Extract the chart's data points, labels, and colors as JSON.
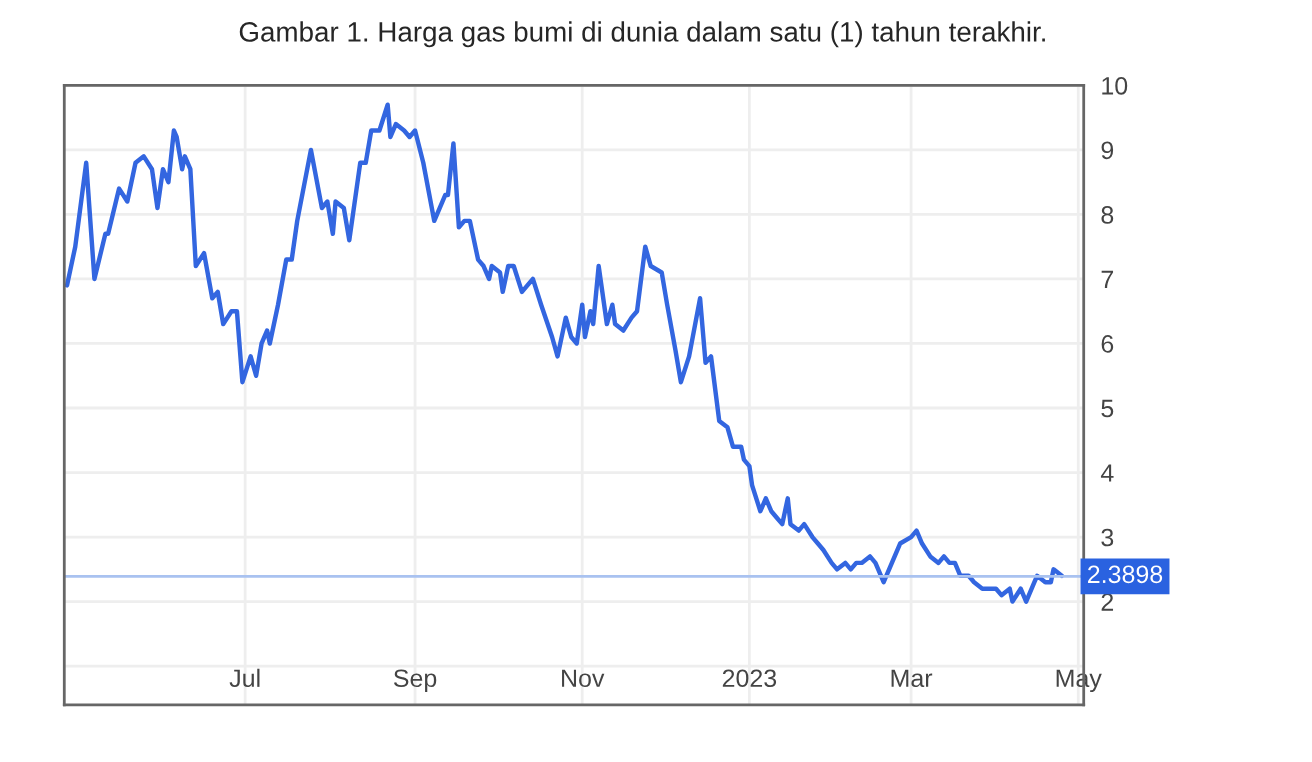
{
  "chart_data": {
    "type": "line",
    "title": "Gambar 1. Harga gas bumi di dunia dalam satu (1) tahun terakhir.",
    "x": [
      "2022-04-27",
      "2022-04-30",
      "2022-05-04",
      "2022-05-07",
      "2022-05-11",
      "2022-05-12",
      "2022-05-16",
      "2022-05-19",
      "2022-05-22",
      "2022-05-25",
      "2022-05-28",
      "2022-05-30",
      "2022-06-01",
      "2022-06-03",
      "2022-06-05",
      "2022-06-06",
      "2022-06-08",
      "2022-06-09",
      "2022-06-11",
      "2022-06-13",
      "2022-06-16",
      "2022-06-19",
      "2022-06-21",
      "2022-06-23",
      "2022-06-26",
      "2022-06-28",
      "2022-06-30",
      "2022-07-03",
      "2022-07-05",
      "2022-07-07",
      "2022-07-09",
      "2022-07-10",
      "2022-07-13",
      "2022-07-16",
      "2022-07-18",
      "2022-07-20",
      "2022-07-25",
      "2022-07-29",
      "2022-07-31",
      "2022-08-02",
      "2022-08-03",
      "2022-08-06",
      "2022-08-08",
      "2022-08-12",
      "2022-08-14",
      "2022-08-16",
      "2022-08-18",
      "2022-08-19",
      "2022-08-22",
      "2022-08-23",
      "2022-08-25",
      "2022-08-28",
      "2022-08-30",
      "2022-09-01",
      "2022-09-04",
      "2022-09-08",
      "2022-09-12",
      "2022-09-13",
      "2022-09-15",
      "2022-09-17",
      "2022-09-19",
      "2022-09-21",
      "2022-09-24",
      "2022-09-26",
      "2022-09-28",
      "2022-09-29",
      "2022-10-02",
      "2022-10-03",
      "2022-10-05",
      "2022-10-07",
      "2022-10-10",
      "2022-10-12",
      "2022-10-14",
      "2022-10-17",
      "2022-10-21",
      "2022-10-23",
      "2022-10-26",
      "2022-10-28",
      "2022-10-30",
      "2022-11-01",
      "2022-11-02",
      "2022-11-04",
      "2022-11-05",
      "2022-11-07",
      "2022-11-10",
      "2022-11-12",
      "2022-11-13",
      "2022-11-16",
      "2022-11-19",
      "2022-11-21",
      "2022-11-24",
      "2022-11-26",
      "2022-11-30",
      "2022-12-02",
      "2022-12-05",
      "2022-12-07",
      "2022-12-10",
      "2022-12-14",
      "2022-12-16",
      "2022-12-18",
      "2022-12-21",
      "2022-12-24",
      "2022-12-26",
      "2022-12-29",
      "2022-12-30",
      "2023-01-01",
      "2023-01-02",
      "2023-01-05",
      "2023-01-07",
      "2023-01-09",
      "2023-01-11",
      "2023-01-13",
      "2023-01-15",
      "2023-01-16",
      "2023-01-19",
      "2023-01-21",
      "2023-01-24",
      "2023-01-26",
      "2023-01-28",
      "2023-01-31",
      "2023-02-02",
      "2023-02-05",
      "2023-02-07",
      "2023-02-09",
      "2023-02-11",
      "2023-02-14",
      "2023-02-16",
      "2023-02-19",
      "2023-02-22",
      "2023-02-25",
      "2023-03-01",
      "2023-03-03",
      "2023-03-05",
      "2023-03-08",
      "2023-03-11",
      "2023-03-13",
      "2023-03-15",
      "2023-03-17",
      "2023-03-19",
      "2023-03-22",
      "2023-03-24",
      "2023-03-27",
      "2023-03-30",
      "2023-04-01",
      "2023-04-03",
      "2023-04-06",
      "2023-04-07",
      "2023-04-10",
      "2023-04-12",
      "2023-04-15",
      "2023-04-16",
      "2023-04-19",
      "2023-04-21",
      "2023-04-22",
      "2023-04-25"
    ],
    "series": [
      {
        "color": "#3366e0",
        "values": [
          6.9,
          7.5,
          8.8,
          7.0,
          7.7,
          7.7,
          8.4,
          8.2,
          8.8,
          8.9,
          8.7,
          8.1,
          8.7,
          8.5,
          9.3,
          9.2,
          8.7,
          8.9,
          8.7,
          7.2,
          7.4,
          6.7,
          6.8,
          6.3,
          6.5,
          6.5,
          5.4,
          5.8,
          5.5,
          6.0,
          6.2,
          6.0,
          6.6,
          7.3,
          7.3,
          7.9,
          9.0,
          8.1,
          8.2,
          7.7,
          8.2,
          8.1,
          7.6,
          8.8,
          8.8,
          9.3,
          9.3,
          9.3,
          9.7,
          9.2,
          9.4,
          9.3,
          9.2,
          9.3,
          8.8,
          7.9,
          8.3,
          8.3,
          9.1,
          7.8,
          7.9,
          7.9,
          7.3,
          7.2,
          7.0,
          7.2,
          7.1,
          6.8,
          7.2,
          7.2,
          6.8,
          6.9,
          7.0,
          6.6,
          6.1,
          5.8,
          6.4,
          6.1,
          6.0,
          6.6,
          6.1,
          6.5,
          6.3,
          7.2,
          6.3,
          6.6,
          6.3,
          6.2,
          6.4,
          6.5,
          7.5,
          7.2,
          7.1,
          6.6,
          5.9,
          5.4,
          5.8,
          6.7,
          5.7,
          5.8,
          4.8,
          4.7,
          4.4,
          4.4,
          4.2,
          4.1,
          3.8,
          3.4,
          3.6,
          3.4,
          3.3,
          3.2,
          3.6,
          3.2,
          3.1,
          3.2,
          3.0,
          2.9,
          2.8,
          2.6,
          2.5,
          2.6,
          2.5,
          2.6,
          2.6,
          2.7,
          2.6,
          2.3,
          2.6,
          2.9,
          3.0,
          3.1,
          2.9,
          2.7,
          2.6,
          2.7,
          2.6,
          2.6,
          2.4,
          2.4,
          2.3,
          2.2,
          2.2,
          2.2,
          2.1,
          2.2,
          2.0,
          2.2,
          2.0,
          2.3,
          2.4,
          2.3,
          2.3,
          2.5,
          2.4
        ]
      }
    ],
    "xlim": [
      "2022-04-26",
      "2023-05-03"
    ],
    "xticks": [
      {
        "value": "2022-07-01",
        "label": "Jul"
      },
      {
        "value": "2022-09-01",
        "label": "Sep"
      },
      {
        "value": "2022-11-01",
        "label": "Nov"
      },
      {
        "value": "2023-01-01",
        "label": "2023"
      },
      {
        "value": "2023-03-01",
        "label": "Mar"
      },
      {
        "value": "2023-05-01",
        "label": "May"
      }
    ],
    "ylim": [
      0.4,
      10
    ],
    "yticks": [
      {
        "value": 1,
        "label": null
      },
      2,
      3,
      4,
      5,
      6,
      7,
      8,
      9,
      10
    ],
    "grid": true,
    "ref_lines": [
      {
        "axis": "y",
        "value": 2.3898,
        "label": "2.3898",
        "color": "#a9c2f0"
      }
    ]
  }
}
